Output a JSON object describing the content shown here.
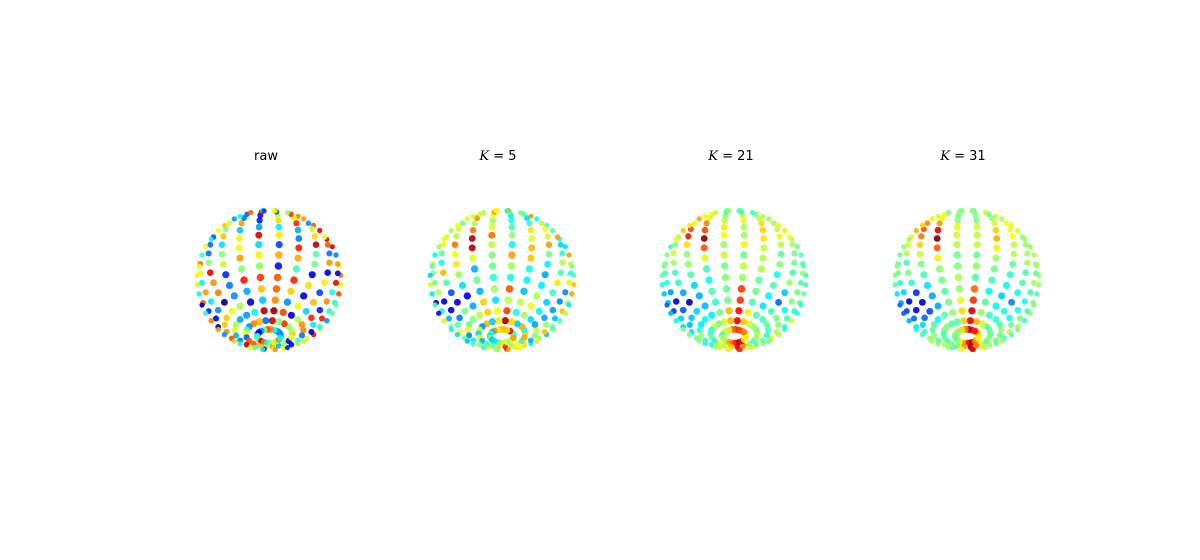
{
  "figure": {
    "colormap": "jet",
    "background": "#ffffff",
    "panels": [
      {
        "title_prefix": "",
        "title_var": "",
        "title_rest": "raw",
        "smoothing": 0.0,
        "noise": 1.0
      },
      {
        "title_prefix": "",
        "title_var": "K",
        "title_rest": " = 5",
        "smoothing": 0.45,
        "noise": 0.55
      },
      {
        "title_prefix": "",
        "title_var": "K",
        "title_rest": " = 21",
        "smoothing": 0.8,
        "noise": 0.22
      },
      {
        "title_prefix": "",
        "title_var": "K",
        "title_rest": " = 31",
        "smoothing": 0.9,
        "noise": 0.12
      }
    ]
  }
}
